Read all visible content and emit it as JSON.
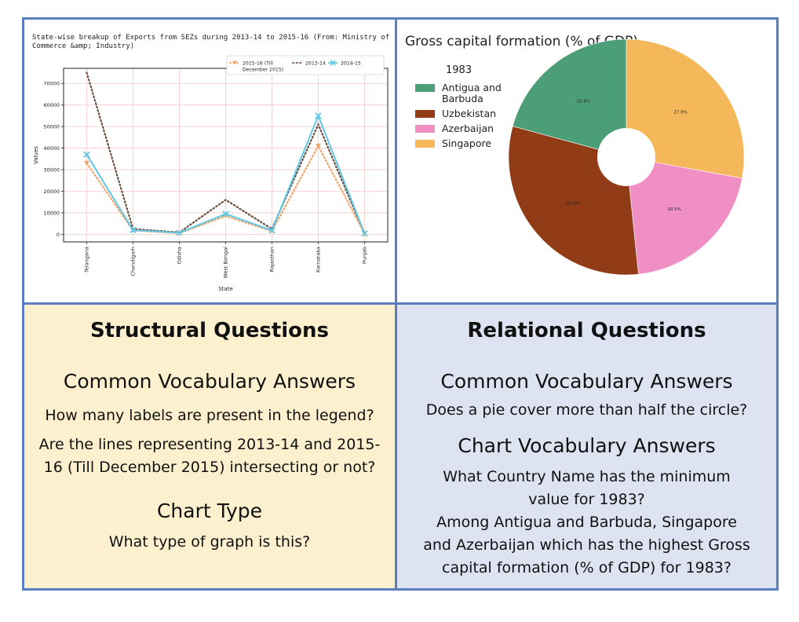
{
  "chart_data": [
    {
      "type": "line",
      "title": "State-wise breakup of Exports from SEZs during 2013-14 to 2015-16 (From: Ministry of Commerce &amp; Industry)",
      "title_lines": [
        "State-wise breakup of Exports from SEZs during 2013-14 to 2015-16 (From: Ministry of",
        "Commerce &amp; Industry)"
      ],
      "xlabel": "State",
      "ylabel": "Values",
      "categories": [
        "Telangana",
        "Chandigarh",
        "Odisha",
        "West Bengal",
        "Rajasthan",
        "Karnataka",
        "Punjab"
      ],
      "ylim": [
        -3500,
        77000
      ],
      "yticks": [
        0,
        10000,
        20000,
        30000,
        40000,
        50000,
        60000,
        70000
      ],
      "grid": true,
      "legend_position": "top-right",
      "series": [
        {
          "name": "2015-16 (Till December 2015)",
          "legend_lines": [
            "2015-16 (Till",
            "December 2015)"
          ],
          "color": "#f4a46a",
          "style": "dotted",
          "marker": "triangle-down",
          "values": [
            33000,
            1800,
            500,
            8500,
            1500,
            41000,
            300
          ]
        },
        {
          "name": "2013-14",
          "legend_lines": [
            "2013-14"
          ],
          "color": "#6b4e3d",
          "style": "dotted",
          "marker": "none",
          "values": [
            75000,
            2500,
            900,
            16000,
            2500,
            51000,
            200
          ]
        },
        {
          "name": "2014-15",
          "legend_lines": [
            "2014-15"
          ],
          "color": "#5ec8e6",
          "style": "solid",
          "marker": "x",
          "values": [
            37000,
            2000,
            700,
            9500,
            1800,
            55000,
            400
          ]
        }
      ]
    },
    {
      "type": "pie",
      "title": "Gross capital formation (% of GDP)",
      "legend_title": "1983",
      "legend_position": "left",
      "donut": true,
      "slices": [
        {
          "label": "Singapore",
          "value": 27.9,
          "label_text": "27.9%",
          "color": "#f4b85b"
        },
        {
          "label": "Azerbaijan",
          "value": 20.5,
          "label_text": "20.5%",
          "color": "#f08fc4"
        },
        {
          "label": "Uzbekistan",
          "value": 30.9,
          "label_text": "30.9%",
          "color": "#923c17"
        },
        {
          "label": "Antigua and Barbuda",
          "value": 20.8,
          "label_text": "20.8%",
          "color": "#4b9e77"
        }
      ],
      "legend_entries": [
        {
          "lines": [
            "Antigua and",
            "Barbuda"
          ],
          "color": "#4b9e77"
        },
        {
          "lines": [
            "Uzbekistan"
          ],
          "color": "#923c17"
        },
        {
          "lines": [
            "Azerbaijan"
          ],
          "color": "#f08fc4"
        },
        {
          "lines": [
            "Singapore"
          ],
          "color": "#f4b85b"
        }
      ]
    }
  ],
  "structural": {
    "heading": "Structural Questions",
    "common_vocab_heading": "Common Vocabulary Answers",
    "q_legend_labels": "How many labels are present in the legend?",
    "q_intersect_line1": "Are the lines representing 2013-14 and 2015-",
    "q_intersect_line2": "16 (Till December 2015) intersecting or not?",
    "chart_type_heading": "Chart Type",
    "q_graph_type": "What type of graph is this?"
  },
  "relational": {
    "heading": "Relational Questions",
    "common_vocab_heading": "Common Vocabulary Answers",
    "q_pie_half": "Does a pie cover more than half the circle?",
    "chart_vocab_heading": "Chart Vocabulary Answers",
    "q_min_line1": "What Country Name has the minimum",
    "q_min_line2": "value for 1983?",
    "q_highest_line1": "Among Antigua and Barbuda, Singapore",
    "q_highest_line2": "and Azerbaijan which has the highest Gross",
    "q_highest_line3": "capital formation (% of GDP) for 1983?"
  }
}
